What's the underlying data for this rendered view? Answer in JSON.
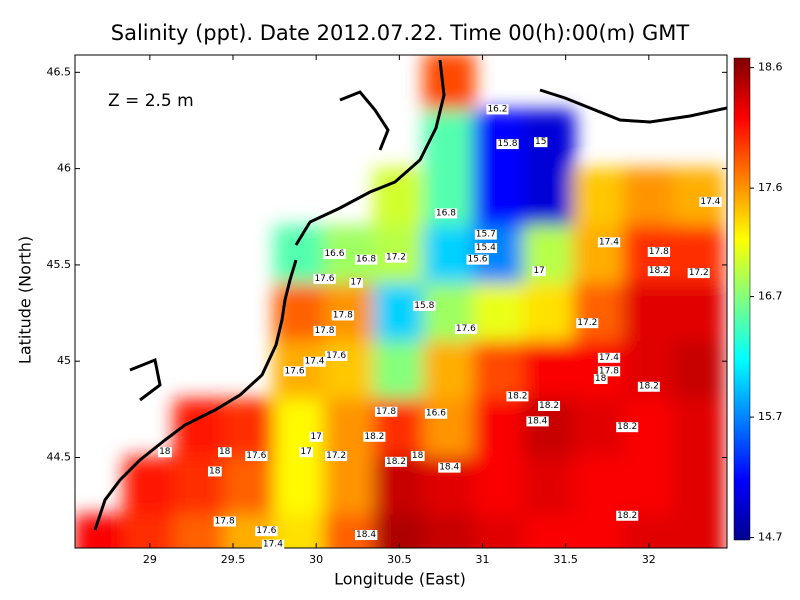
{
  "chart_data": {
    "type": "contour-map",
    "title": "Salinity (ppt). Date 2012.07.22. Time 00(h):00(m) GMT",
    "annotation": "Z = 2.5 m",
    "x_label": "Longitude (East)",
    "y_label": "Latitude (North)",
    "xlim": [
      28.55,
      32.47
    ],
    "ylim": [
      44.03,
      46.59
    ],
    "xticks": [
      29,
      29.5,
      30,
      30.5,
      31,
      31.5,
      32
    ],
    "yticks": [
      44.5,
      45,
      45.5,
      46,
      46.5
    ],
    "clim": [
      14.68,
      18.68
    ],
    "cticks": [
      14.7,
      15.7,
      16.7,
      17.6,
      18.6
    ],
    "colormap": [
      "#00008f",
      "#0000ff",
      "#0080ff",
      "#00ffff",
      "#80ff80",
      "#ffff00",
      "#ff8000",
      "#ff0000",
      "#800000"
    ],
    "field": {
      "lon": [
        28.7,
        29.0,
        29.3,
        29.6,
        29.9,
        30.2,
        30.5,
        30.8,
        31.1,
        31.4,
        31.7,
        32.0,
        32.3
      ],
      "lat": [
        46.45,
        46.15,
        45.85,
        45.55,
        45.25,
        44.95,
        44.65,
        44.35,
        44.05
      ],
      "values": [
        [
          null,
          null,
          null,
          null,
          null,
          null,
          null,
          17.9,
          null,
          null,
          null,
          null,
          null
        ],
        [
          null,
          null,
          null,
          null,
          null,
          null,
          null,
          16.5,
          15.2,
          15.0,
          null,
          null,
          null
        ],
        [
          null,
          null,
          null,
          null,
          null,
          null,
          17.0,
          16.5,
          15.2,
          15.0,
          17.4,
          17.6,
          17.5
        ],
        [
          null,
          null,
          null,
          null,
          16.5,
          16.8,
          16.9,
          16.0,
          15.7,
          16.9,
          17.5,
          18.0,
          18.0
        ],
        [
          null,
          null,
          null,
          null,
          17.8,
          17.6,
          16.0,
          16.8,
          17.1,
          17.3,
          17.8,
          18.3,
          18.3
        ],
        [
          null,
          null,
          null,
          null,
          17.5,
          17.4,
          16.7,
          17.5,
          17.9,
          18.2,
          18.2,
          18.3,
          18.4
        ],
        [
          null,
          null,
          18.1,
          18.0,
          17.2,
          17.6,
          18.0,
          17.6,
          18.2,
          18.4,
          18.3,
          18.2,
          18.3
        ],
        [
          null,
          18.1,
          18.0,
          17.8,
          17.2,
          17.6,
          18.4,
          18.3,
          18.2,
          18.3,
          18.2,
          18.2,
          18.3
        ],
        [
          18.2,
          18.0,
          17.8,
          17.5,
          17.3,
          17.8,
          18.5,
          18.4,
          18.3,
          18.2,
          18.2,
          18.3,
          18.3
        ]
      ]
    },
    "contour_labels": [
      {
        "lon": 31.09,
        "lat": 46.31,
        "value": 16.2
      },
      {
        "lon": 31.15,
        "lat": 46.13,
        "value": 15.8
      },
      {
        "lon": 31.35,
        "lat": 46.14,
        "value": 15
      },
      {
        "lon": 30.78,
        "lat": 45.77,
        "value": 16.8
      },
      {
        "lon": 32.37,
        "lat": 45.83,
        "value": 17.4
      },
      {
        "lon": 31.76,
        "lat": 45.62,
        "value": 17.4
      },
      {
        "lon": 32.06,
        "lat": 45.57,
        "value": 17.8
      },
      {
        "lon": 32.06,
        "lat": 45.47,
        "value": 18.2
      },
      {
        "lon": 32.3,
        "lat": 45.46,
        "value": 17.2
      },
      {
        "lon": 31.02,
        "lat": 45.66,
        "value": 15.7
      },
      {
        "lon": 31.02,
        "lat": 45.59,
        "value": 15.4
      },
      {
        "lon": 30.97,
        "lat": 45.53,
        "value": 15.6
      },
      {
        "lon": 31.34,
        "lat": 45.47,
        "value": 17
      },
      {
        "lon": 30.11,
        "lat": 45.56,
        "value": 16.6
      },
      {
        "lon": 30.3,
        "lat": 45.53,
        "value": 16.8
      },
      {
        "lon": 30.48,
        "lat": 45.54,
        "value": 17.2
      },
      {
        "lon": 30.05,
        "lat": 45.43,
        "value": 17.6
      },
      {
        "lon": 30.24,
        "lat": 45.41,
        "value": 17
      },
      {
        "lon": 30.65,
        "lat": 45.29,
        "value": 15.8
      },
      {
        "lon": 30.16,
        "lat": 45.24,
        "value": 17.8
      },
      {
        "lon": 30.05,
        "lat": 45.16,
        "value": 17.8
      },
      {
        "lon": 30.9,
        "lat": 45.17,
        "value": 17.6
      },
      {
        "lon": 31.63,
        "lat": 45.2,
        "value": 17.2
      },
      {
        "lon": 30.12,
        "lat": 45.03,
        "value": 17.6
      },
      {
        "lon": 29.99,
        "lat": 45.0,
        "value": 17.4
      },
      {
        "lon": 29.87,
        "lat": 44.95,
        "value": 17.6
      },
      {
        "lon": 31.76,
        "lat": 45.02,
        "value": 17.4
      },
      {
        "lon": 31.76,
        "lat": 44.95,
        "value": 17.8
      },
      {
        "lon": 31.71,
        "lat": 44.91,
        "value": 18
      },
      {
        "lon": 32.0,
        "lat": 44.87,
        "value": 18.2
      },
      {
        "lon": 31.21,
        "lat": 44.82,
        "value": 18.2
      },
      {
        "lon": 31.4,
        "lat": 44.77,
        "value": 18.2
      },
      {
        "lon": 31.33,
        "lat": 44.69,
        "value": 18.4
      },
      {
        "lon": 30.42,
        "lat": 44.74,
        "value": 17.8
      },
      {
        "lon": 30.72,
        "lat": 44.73,
        "value": 16.6
      },
      {
        "lon": 30.35,
        "lat": 44.61,
        "value": 18.2
      },
      {
        "lon": 31.87,
        "lat": 44.66,
        "value": 18.2
      },
      {
        "lon": 30.0,
        "lat": 44.61,
        "value": 17
      },
      {
        "lon": 29.94,
        "lat": 44.53,
        "value": 17
      },
      {
        "lon": 30.12,
        "lat": 44.51,
        "value": 17.2
      },
      {
        "lon": 29.09,
        "lat": 44.53,
        "value": 18
      },
      {
        "lon": 29.45,
        "lat": 44.53,
        "value": 18
      },
      {
        "lon": 29.64,
        "lat": 44.51,
        "value": 17.6
      },
      {
        "lon": 29.39,
        "lat": 44.43,
        "value": 18
      },
      {
        "lon": 30.48,
        "lat": 44.48,
        "value": 18.2
      },
      {
        "lon": 30.61,
        "lat": 44.51,
        "value": 18
      },
      {
        "lon": 30.8,
        "lat": 44.45,
        "value": 18.4
      },
      {
        "lon": 31.87,
        "lat": 44.2,
        "value": 18.2
      },
      {
        "lon": 29.45,
        "lat": 44.17,
        "value": 17.8
      },
      {
        "lon": 29.7,
        "lat": 44.12,
        "value": 17.6
      },
      {
        "lon": 29.74,
        "lat": 44.05,
        "value": 17.4
      },
      {
        "lon": 30.3,
        "lat": 44.1,
        "value": 18.4
      }
    ]
  }
}
